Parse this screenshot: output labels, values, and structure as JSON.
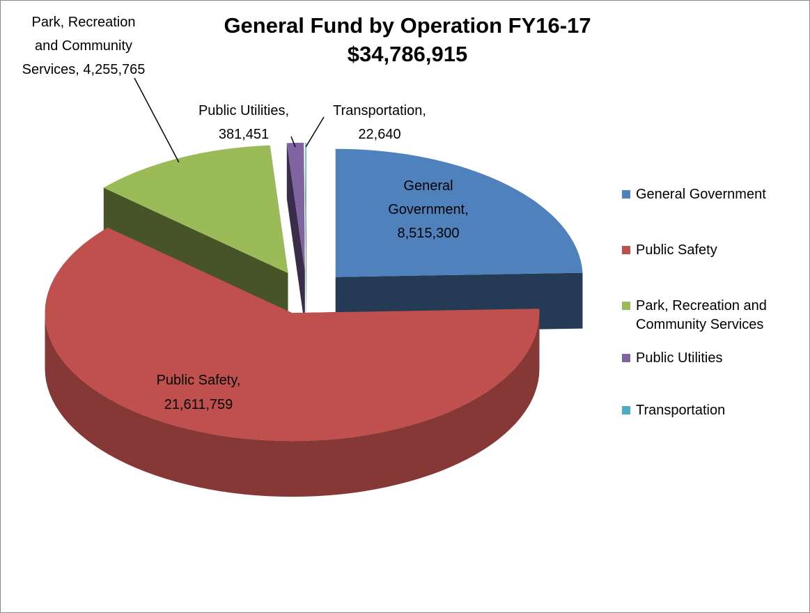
{
  "chart_data": {
    "type": "pie3d",
    "title": "General Fund by Operation FY16-17",
    "subtitle": "$34,786,915",
    "categories": [
      "General Government",
      "Public Safety",
      "Park, Recreation and Community Services",
      "Public Utilities",
      "Transportation"
    ],
    "values": [
      8515300,
      21611759,
      4255765,
      381451,
      22640
    ],
    "value_labels": [
      [
        "General",
        "Government,",
        "8,515,300"
      ],
      [
        "Public Safety,",
        "21,611,759"
      ],
      [
        "Park, Recreation",
        "and Community",
        "Services, 4,255,765"
      ],
      [
        "Public Utilities,",
        "381,451"
      ],
      [
        "Transportation,",
        "22,640"
      ]
    ],
    "colors": [
      "#4f81bd",
      "#c0504d",
      "#9bbb59",
      "#8064a2",
      "#4bacc6"
    ],
    "legend": "right"
  }
}
